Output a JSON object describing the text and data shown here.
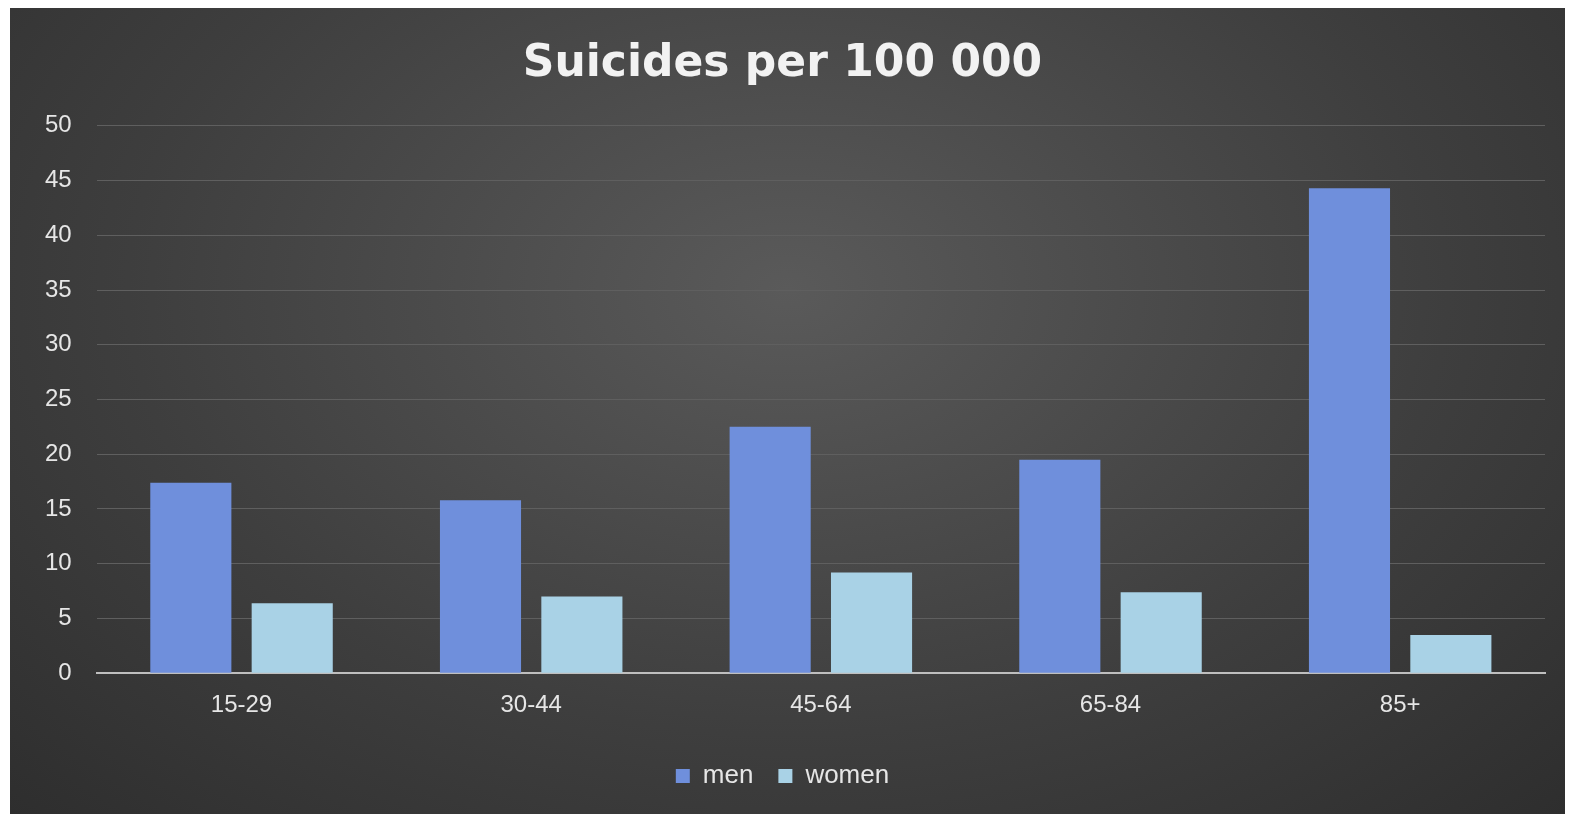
{
  "chart_data": {
    "type": "bar",
    "title": "Suicides per 100 000",
    "categories": [
      "15-29",
      "30-44",
      "45-64",
      "65-84",
      "85+"
    ],
    "series": [
      {
        "name": "men",
        "color": "#6f8fdc",
        "values": [
          17.4,
          15.8,
          22.5,
          19.5,
          44.3
        ]
      },
      {
        "name": "women",
        "color": "#a9d2e6",
        "values": [
          6.4,
          7.0,
          9.2,
          7.4,
          3.5
        ]
      }
    ],
    "ylim": [
      0,
      50
    ],
    "yticks": [
      0,
      5,
      10,
      15,
      20,
      25,
      30,
      35,
      40,
      45,
      50
    ],
    "grid": "y",
    "legend": "bottom"
  }
}
